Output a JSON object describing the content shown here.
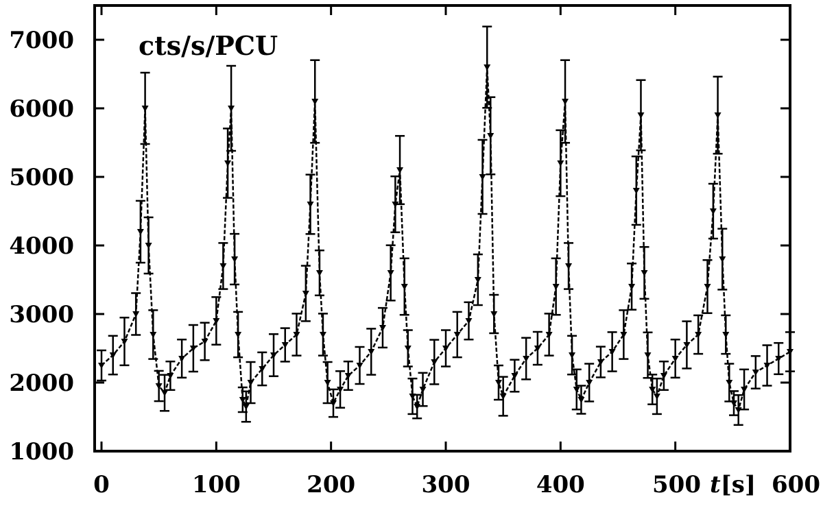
{
  "chart_data": {
    "type": "line",
    "title": "",
    "annotation": "cts/s/PCU",
    "xlabel": {
      "var": "t",
      "unit": "[s]"
    },
    "ylabel": "",
    "xlim": [
      0,
      600
    ],
    "ylim": [
      1000,
      7500
    ],
    "xticks": [
      "0",
      "100",
      "200",
      "300",
      "400",
      "500",
      "600"
    ],
    "yticks": [
      "1000",
      "2000",
      "3000",
      "4000",
      "5000",
      "6000",
      "7000"
    ],
    "grid": false,
    "legend": "none",
    "color": "#000000",
    "error_bars": true,
    "series": [
      {
        "points": [
          [
            0,
            2250
          ],
          [
            10,
            2400
          ],
          [
            20,
            2600
          ],
          [
            30,
            3000
          ],
          [
            34,
            4200
          ],
          [
            38,
            6000
          ],
          [
            41,
            4000
          ],
          [
            45,
            2700
          ],
          [
            50,
            1950
          ],
          [
            55,
            1850
          ],
          [
            60,
            2100
          ],
          [
            70,
            2350
          ],
          [
            80,
            2500
          ],
          [
            90,
            2600
          ],
          [
            100,
            2900
          ],
          [
            106,
            3700
          ],
          [
            110,
            5200
          ],
          [
            113,
            6000
          ],
          [
            116,
            3800
          ],
          [
            119,
            2700
          ],
          [
            123,
            1750
          ],
          [
            126,
            1650
          ],
          [
            130,
            2000
          ],
          [
            140,
            2200
          ],
          [
            150,
            2400
          ],
          [
            160,
            2550
          ],
          [
            170,
            2700
          ],
          [
            178,
            3300
          ],
          [
            182,
            4600
          ],
          [
            186,
            6100
          ],
          [
            190,
            3600
          ],
          [
            193,
            2700
          ],
          [
            197,
            2000
          ],
          [
            202,
            1700
          ],
          [
            208,
            1900
          ],
          [
            215,
            2100
          ],
          [
            225,
            2250
          ],
          [
            235,
            2450
          ],
          [
            245,
            2800
          ],
          [
            252,
            3600
          ],
          [
            256,
            4600
          ],
          [
            260,
            5100
          ],
          [
            264,
            3400
          ],
          [
            267,
            2500
          ],
          [
            271,
            1800
          ],
          [
            275,
            1650
          ],
          [
            280,
            1900
          ],
          [
            290,
            2300
          ],
          [
            300,
            2500
          ],
          [
            310,
            2700
          ],
          [
            320,
            2900
          ],
          [
            328,
            3500
          ],
          [
            332,
            5000
          ],
          [
            336,
            6600
          ],
          [
            339,
            5600
          ],
          [
            342,
            3000
          ],
          [
            346,
            2000
          ],
          [
            350,
            1800
          ],
          [
            360,
            2100
          ],
          [
            370,
            2350
          ],
          [
            380,
            2500
          ],
          [
            390,
            2700
          ],
          [
            396,
            3400
          ],
          [
            400,
            5200
          ],
          [
            404,
            6100
          ],
          [
            407,
            3700
          ],
          [
            410,
            2400
          ],
          [
            414,
            1900
          ],
          [
            418,
            1750
          ],
          [
            425,
            2000
          ],
          [
            435,
            2300
          ],
          [
            445,
            2450
          ],
          [
            455,
            2700
          ],
          [
            462,
            3400
          ],
          [
            466,
            4800
          ],
          [
            470,
            5900
          ],
          [
            473,
            3600
          ],
          [
            476,
            2400
          ],
          [
            480,
            1900
          ],
          [
            484,
            1800
          ],
          [
            490,
            2100
          ],
          [
            500,
            2350
          ],
          [
            510,
            2550
          ],
          [
            520,
            2700
          ],
          [
            528,
            3400
          ],
          [
            533,
            4500
          ],
          [
            537,
            5900
          ],
          [
            541,
            3800
          ],
          [
            544,
            2700
          ],
          [
            547,
            2000
          ],
          [
            551,
            1700
          ],
          [
            555,
            1600
          ],
          [
            560,
            1900
          ],
          [
            570,
            2150
          ],
          [
            580,
            2250
          ],
          [
            590,
            2350
          ],
          [
            600,
            2450
          ]
        ]
      }
    ]
  }
}
